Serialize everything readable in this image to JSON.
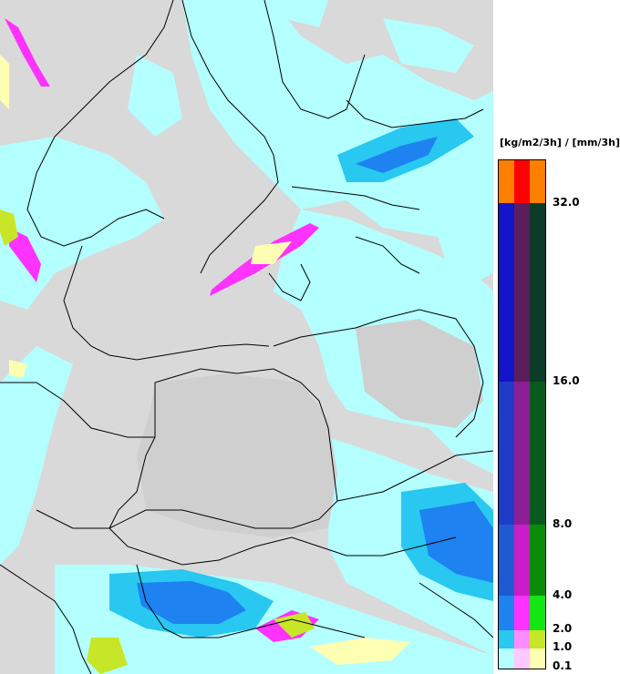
{
  "legend": {
    "unit": "[kg/m2/3h] / [mm/3h]",
    "ticks": [
      "32.0",
      "16.0",
      "8.0",
      "4.0",
      "2.0",
      "1.0",
      "0.1"
    ],
    "tick_values": [
      32.0,
      16.0,
      8.0,
      4.0,
      2.0,
      1.0,
      0.1
    ],
    "bands": [
      {
        "range": "above 32.0",
        "colors": [
          "#ff8000",
          "#ff0000",
          "#ff8000"
        ]
      },
      {
        "range": "16.0-32.0",
        "colors": [
          "#1414c8",
          "#5a1e5a",
          "#0a3c28"
        ]
      },
      {
        "range": "8.0-16.0",
        "colors": [
          "#1e3cc8",
          "#8c1e96",
          "#0a5a1e"
        ]
      },
      {
        "range": "4.0-8.0",
        "colors": [
          "#1e5ad2",
          "#c81ec8",
          "#0a8c0a"
        ]
      },
      {
        "range": "2.0-4.0",
        "colors": [
          "#1e82f0",
          "#ff32ff",
          "#14e614"
        ]
      },
      {
        "range": "1.0-2.0",
        "colors": [
          "#28c8f0",
          "#ff8cff",
          "#c8e628"
        ]
      },
      {
        "range": "0.1-1.0",
        "colors": [
          "#b4ffff",
          "#ffc8ff",
          "#ffffb4"
        ]
      }
    ]
  },
  "map": {
    "background_color": "#d9d9d9",
    "border_color": "#000000"
  }
}
